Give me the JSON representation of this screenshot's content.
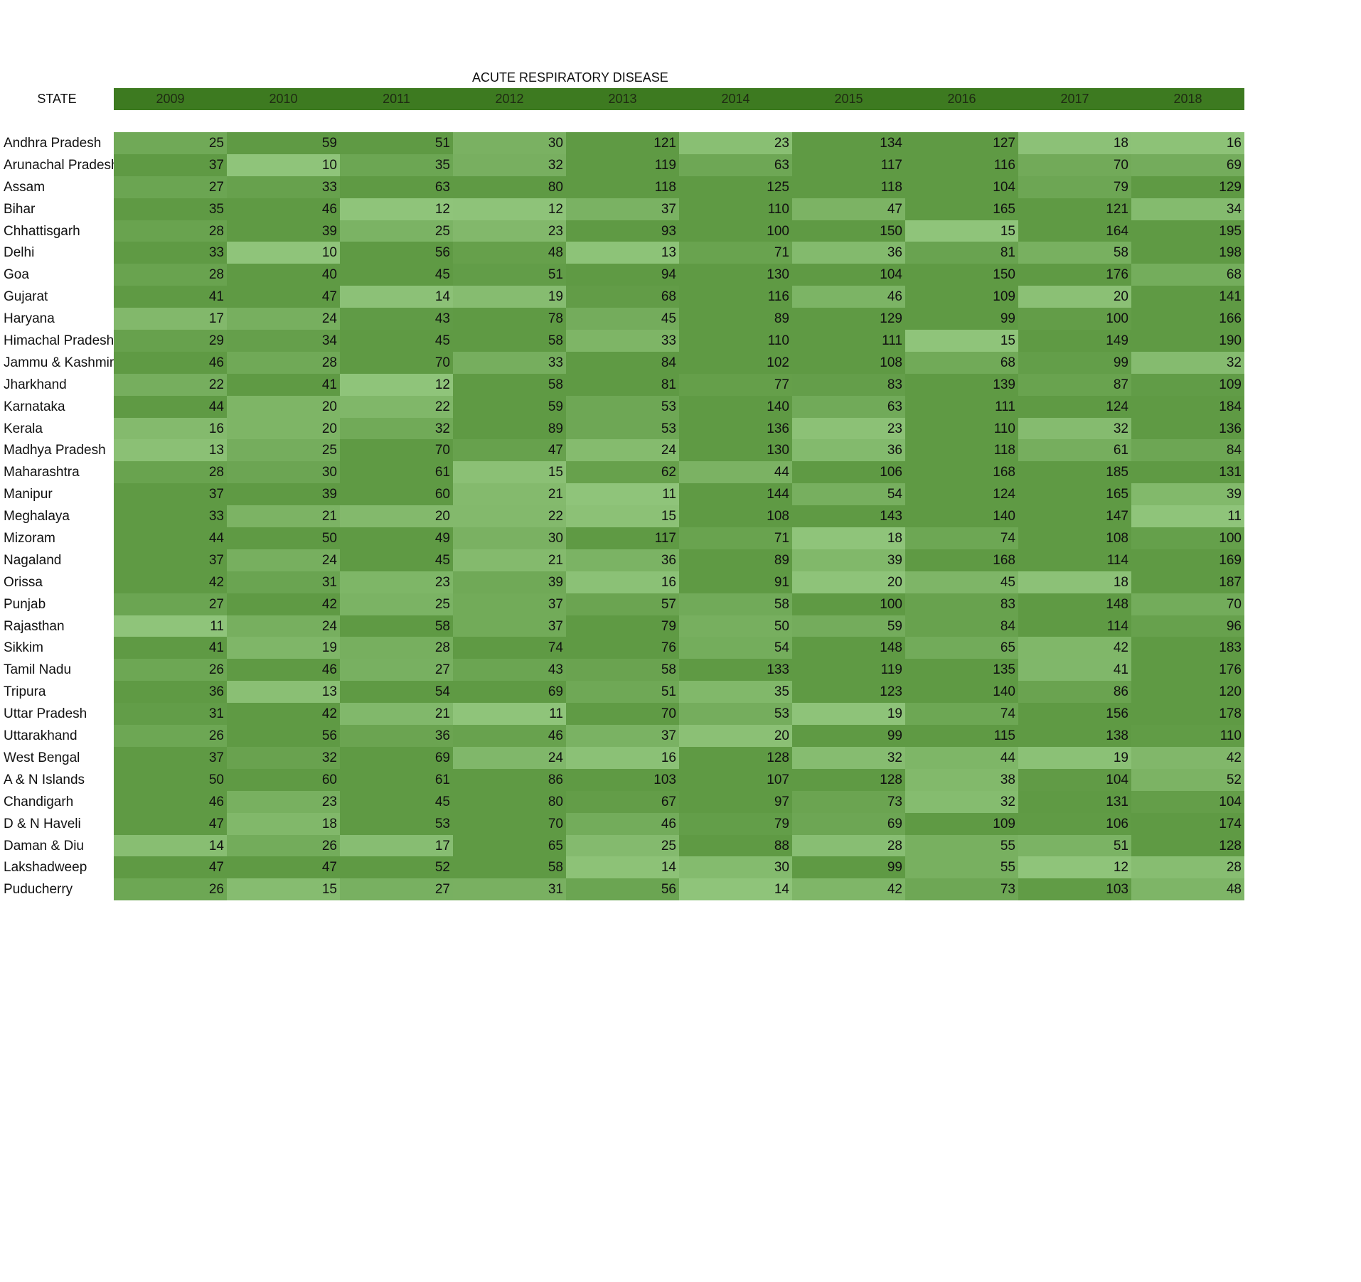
{
  "chart_data": {
    "type": "heatmap",
    "title": "ACUTE RESPIRATORY DISEASE",
    "row_header": "STATE",
    "columns": [
      "2009",
      "2010",
      "2011",
      "2012",
      "2013",
      "2014",
      "2015",
      "2016",
      "2017",
      "2018"
    ],
    "colors": {
      "header_bar": "#3d7a20",
      "low": "#8fc47a",
      "high": "#5f9a44"
    },
    "rows": [
      {
        "state": "Andhra Pradesh",
        "values": [
          25,
          59,
          51,
          30,
          121,
          23,
          134,
          127,
          18,
          16
        ]
      },
      {
        "state": "Arunachal Pradesh",
        "values": [
          37,
          10,
          35,
          32,
          119,
          63,
          117,
          116,
          70,
          69
        ]
      },
      {
        "state": "Assam",
        "values": [
          27,
          33,
          63,
          80,
          118,
          125,
          118,
          104,
          79,
          129
        ]
      },
      {
        "state": "Bihar",
        "values": [
          35,
          46,
          12,
          12,
          37,
          110,
          47,
          165,
          121,
          34
        ]
      },
      {
        "state": "Chhattisgarh",
        "values": [
          28,
          39,
          25,
          23,
          93,
          100,
          150,
          15,
          164,
          195
        ]
      },
      {
        "state": "Delhi",
        "values": [
          33,
          10,
          56,
          48,
          13,
          71,
          36,
          81,
          58,
          198
        ]
      },
      {
        "state": "Goa",
        "values": [
          28,
          40,
          45,
          51,
          94,
          130,
          104,
          150,
          176,
          68
        ]
      },
      {
        "state": "Gujarat",
        "values": [
          41,
          47,
          14,
          19,
          68,
          116,
          46,
          109,
          20,
          141
        ]
      },
      {
        "state": "Haryana",
        "values": [
          17,
          24,
          43,
          78,
          45,
          89,
          129,
          99,
          100,
          166
        ]
      },
      {
        "state": "Himachal Pradesh",
        "values": [
          29,
          34,
          45,
          58,
          33,
          110,
          111,
          15,
          149,
          190
        ]
      },
      {
        "state": "Jammu & Kashmir",
        "values": [
          46,
          28,
          70,
          33,
          84,
          102,
          108,
          68,
          99,
          32
        ]
      },
      {
        "state": "Jharkhand",
        "values": [
          22,
          41,
          12,
          58,
          81,
          77,
          83,
          139,
          87,
          109
        ]
      },
      {
        "state": "Karnataka",
        "values": [
          44,
          20,
          22,
          59,
          53,
          140,
          63,
          111,
          124,
          184
        ]
      },
      {
        "state": "Kerala",
        "values": [
          16,
          20,
          32,
          89,
          53,
          136,
          23,
          110,
          32,
          136
        ]
      },
      {
        "state": "Madhya Pradesh",
        "values": [
          13,
          25,
          70,
          47,
          24,
          130,
          36,
          118,
          61,
          84
        ]
      },
      {
        "state": "Maharashtra",
        "values": [
          28,
          30,
          61,
          15,
          62,
          44,
          106,
          168,
          185,
          131
        ]
      },
      {
        "state": "Manipur",
        "values": [
          37,
          39,
          60,
          21,
          11,
          144,
          54,
          124,
          165,
          39
        ]
      },
      {
        "state": "Meghalaya",
        "values": [
          33,
          21,
          20,
          22,
          15,
          108,
          143,
          140,
          147,
          11
        ]
      },
      {
        "state": "Mizoram",
        "values": [
          44,
          50,
          49,
          30,
          117,
          71,
          18,
          74,
          108,
          100
        ]
      },
      {
        "state": "Nagaland",
        "values": [
          37,
          24,
          45,
          21,
          36,
          89,
          39,
          168,
          114,
          169
        ]
      },
      {
        "state": "Orissa",
        "values": [
          42,
          31,
          23,
          39,
          16,
          91,
          20,
          45,
          18,
          187
        ]
      },
      {
        "state": "Punjab",
        "values": [
          27,
          42,
          25,
          37,
          57,
          58,
          100,
          83,
          148,
          70
        ]
      },
      {
        "state": "Rajasthan",
        "values": [
          11,
          24,
          58,
          37,
          79,
          50,
          59,
          84,
          114,
          96
        ]
      },
      {
        "state": "Sikkim",
        "values": [
          41,
          19,
          28,
          74,
          76,
          54,
          148,
          65,
          42,
          183
        ]
      },
      {
        "state": "Tamil Nadu",
        "values": [
          26,
          46,
          27,
          43,
          58,
          133,
          119,
          135,
          41,
          176
        ]
      },
      {
        "state": "Tripura",
        "values": [
          36,
          13,
          54,
          69,
          51,
          35,
          123,
          140,
          86,
          120
        ]
      },
      {
        "state": "Uttar Pradesh",
        "values": [
          31,
          42,
          21,
          11,
          70,
          53,
          19,
          74,
          156,
          178
        ]
      },
      {
        "state": "Uttarakhand",
        "values": [
          26,
          56,
          36,
          46,
          37,
          20,
          99,
          115,
          138,
          110
        ]
      },
      {
        "state": "West Bengal",
        "values": [
          37,
          32,
          69,
          24,
          16,
          128,
          32,
          44,
          19,
          42
        ]
      },
      {
        "state": "A & N Islands",
        "values": [
          50,
          60,
          61,
          86,
          103,
          107,
          128,
          38,
          104,
          52
        ]
      },
      {
        "state": "Chandigarh",
        "values": [
          46,
          23,
          45,
          80,
          67,
          97,
          73,
          32,
          131,
          104
        ]
      },
      {
        "state": "D & N Haveli",
        "values": [
          47,
          18,
          53,
          70,
          46,
          79,
          69,
          109,
          106,
          174
        ]
      },
      {
        "state": "Daman & Diu",
        "values": [
          14,
          26,
          17,
          65,
          25,
          88,
          28,
          55,
          51,
          128
        ]
      },
      {
        "state": "Lakshadweep",
        "values": [
          47,
          47,
          52,
          58,
          14,
          30,
          99,
          55,
          12,
          28
        ]
      },
      {
        "state": "Puducherry",
        "values": [
          26,
          15,
          27,
          31,
          56,
          14,
          42,
          73,
          103,
          48
        ]
      }
    ]
  }
}
